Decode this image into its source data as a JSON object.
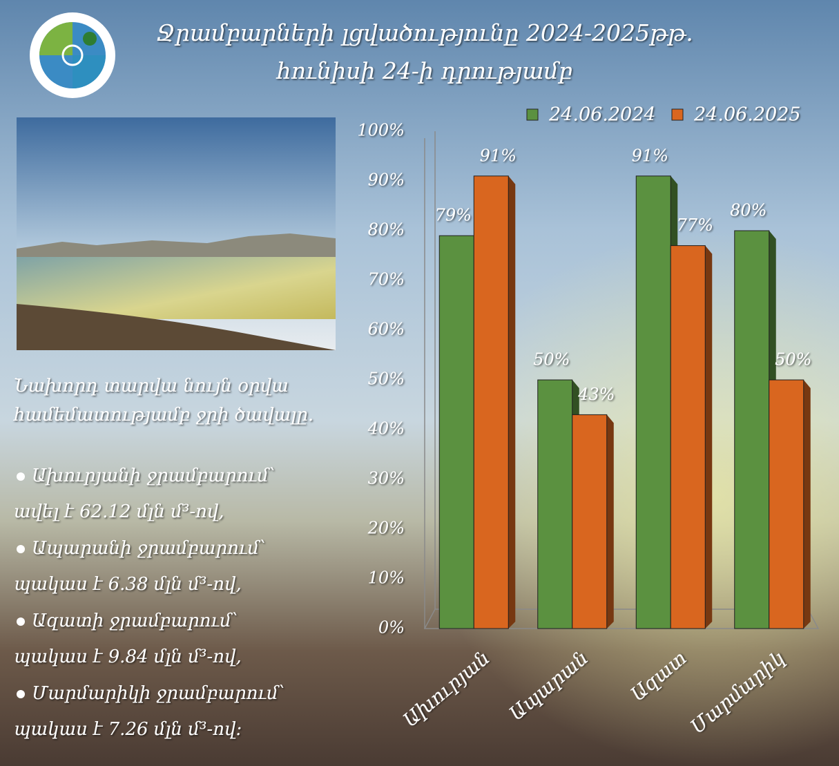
{
  "header": {
    "title_lines": [
      "Ջրամբարների լցվածությունը 2024-2025թթ.",
      "հունիսի 24-ի դրությամբ"
    ]
  },
  "summary": {
    "intro": [
      "Նախորդ տարվա նույն օրվա",
      "համեմատությամբ ջրի ծավալը."
    ],
    "items": [
      [
        "Ախուրյանի ջրամբարում՝",
        "ավել է 62.12 մլն մ³-ով,"
      ],
      [
        "Ապարանի ջրամբարում՝",
        "պակաս է 6.38 մլն մ³-ով,"
      ],
      [
        "Ազատի ջրամբարում՝",
        "պակաս է  9.84 մլն մ³-ով,"
      ],
      [
        "Մարմարիկի ջրամբարում՝",
        "պակաս է 7.26 մլն մ³-ով:"
      ]
    ]
  },
  "chart_data": {
    "type": "bar",
    "categories": [
      "Ախուրյան",
      "Ապարան",
      "Ազատ",
      "Մարմարիկ"
    ],
    "series": [
      {
        "name": "24.06.2024",
        "color": "#5b9140",
        "values": [
          79,
          50,
          91,
          80
        ],
        "value_labels": [
          "79%",
          "50%",
          "91%",
          "80%"
        ]
      },
      {
        "name": "24.06.2025",
        "color": "#d9661f",
        "values": [
          91,
          43,
          77,
          50
        ],
        "value_labels": [
          "91%",
          "43%",
          "77%",
          "50%"
        ]
      }
    ],
    "ylim": [
      0,
      100
    ],
    "yticks": [
      {
        "value": 0,
        "label": "0%"
      },
      {
        "value": 10,
        "label": "10%"
      },
      {
        "value": 20,
        "label": "20%"
      },
      {
        "value": 30,
        "label": "30%"
      },
      {
        "value": 40,
        "label": "40%"
      },
      {
        "value": 50,
        "label": "50%"
      },
      {
        "value": 60,
        "label": "60%"
      },
      {
        "value": 70,
        "label": "70%"
      },
      {
        "value": 80,
        "label": "80%"
      },
      {
        "value": 90,
        "label": "90%"
      },
      {
        "value": 100,
        "label": "100%"
      }
    ],
    "grid": false,
    "legend_position": "top"
  }
}
